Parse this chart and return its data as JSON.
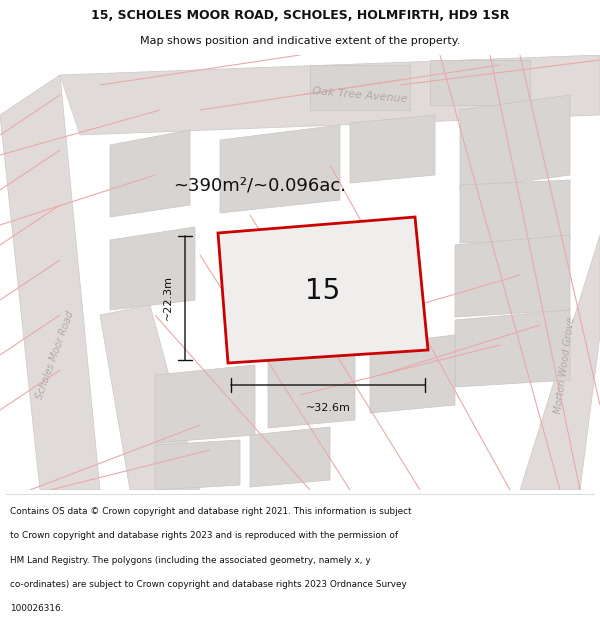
{
  "title_line1": "15, SCHOLES MOOR ROAD, SCHOLES, HOLMFIRTH, HD9 1SR",
  "title_line2": "Map shows position and indicative extent of the property.",
  "area_text": "~390m²/~0.096ac.",
  "property_number": "15",
  "dim_vertical": "~22.3m",
  "dim_horizontal": "~32.6m",
  "road_label_left": "Scholes Moor Road",
  "road_label_top": "Oak Tree Avenue",
  "road_label_right": "Morton Wood Grove",
  "footer_lines": [
    "Contains OS data © Crown copyright and database right 2021. This information is subject",
    "to Crown copyright and database rights 2023 and is reproduced with the permission of",
    "HM Land Registry. The polygons (including the associated geometry, namely x, y",
    "co-ordinates) are subject to Crown copyright and database rights 2023 Ordnance Survey",
    "100026316."
  ],
  "map_bg": "#eeebe9",
  "road_fill": "#e0dbd9",
  "block_fill": "#d8d4d2",
  "block_edge": "#c8c4c2",
  "property_fill": "#f0eeec",
  "red_outline": "#cc0000",
  "road_line_color": "#e8aaaa",
  "road_label_color": "#b0a8a8",
  "text_color": "#111111",
  "white": "#ffffff"
}
